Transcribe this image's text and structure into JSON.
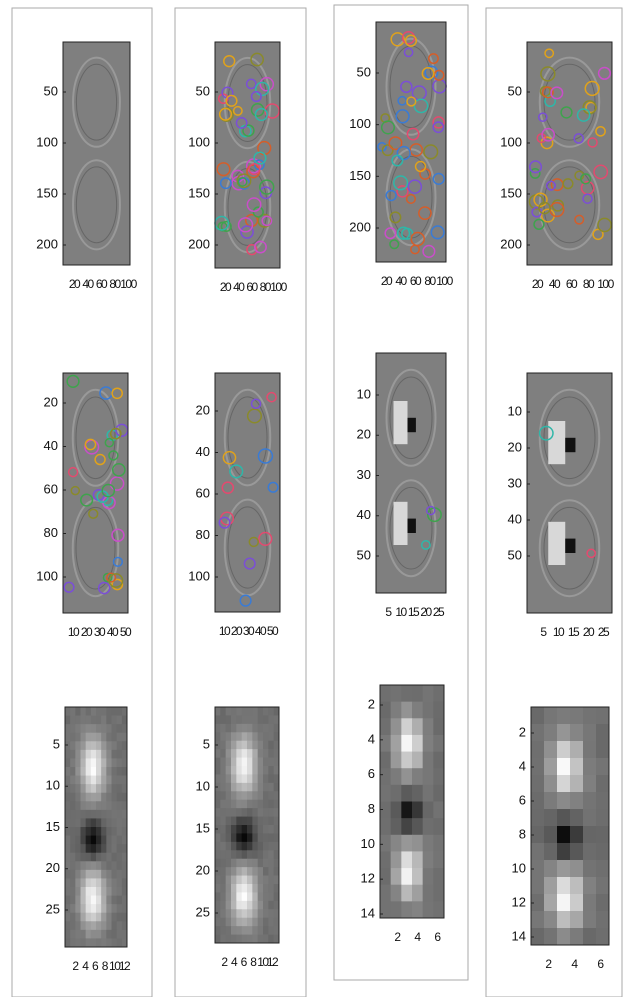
{
  "columns": [
    {
      "panels": [
        {
          "yticks": [
            50,
            100,
            150,
            200
          ],
          "xticks": [
            20,
            40,
            60,
            80,
            100
          ]
        },
        {
          "yticks": [
            20,
            40,
            60,
            80,
            100
          ],
          "xticks": [
            10,
            20,
            30,
            40,
            50
          ]
        },
        {
          "yticks": [
            5,
            10,
            15,
            20,
            25
          ],
          "xticks": [
            2,
            4,
            6,
            8,
            10,
            12
          ]
        }
      ]
    },
    {
      "panels": [
        {
          "yticks": [
            50,
            100,
            150,
            200
          ],
          "xticks": [
            20,
            40,
            60,
            80,
            100
          ]
        },
        {
          "yticks": [
            20,
            40,
            60,
            80,
            100
          ],
          "xticks": [
            10,
            20,
            30,
            40,
            50
          ]
        },
        {
          "yticks": [
            5,
            10,
            15,
            20,
            25
          ],
          "xticks": [
            2,
            4,
            6,
            8,
            10,
            12
          ]
        }
      ]
    },
    {
      "panels": [
        {
          "yticks": [
            50,
            100,
            150,
            200
          ],
          "xticks": [
            20,
            40,
            60,
            80,
            100
          ]
        },
        {
          "yticks": [
            10,
            20,
            30,
            40,
            50
          ],
          "xticks": [
            5,
            10,
            15,
            20,
            25
          ]
        },
        {
          "yticks": [
            2,
            4,
            6,
            8,
            10,
            12,
            14
          ],
          "xticks": [
            2,
            4,
            6
          ]
        }
      ]
    },
    {
      "panels": [
        {
          "yticks": [
            50,
            100,
            150,
            200
          ],
          "xticks": [
            20,
            40,
            60,
            80,
            100
          ]
        },
        {
          "yticks": [
            10,
            20,
            30,
            40,
            50
          ],
          "xticks": [
            5,
            10,
            15,
            20,
            25
          ]
        },
        {
          "yticks": [
            2,
            4,
            6,
            8,
            10,
            12,
            14
          ],
          "xticks": [
            2,
            4,
            6
          ]
        }
      ]
    }
  ]
}
